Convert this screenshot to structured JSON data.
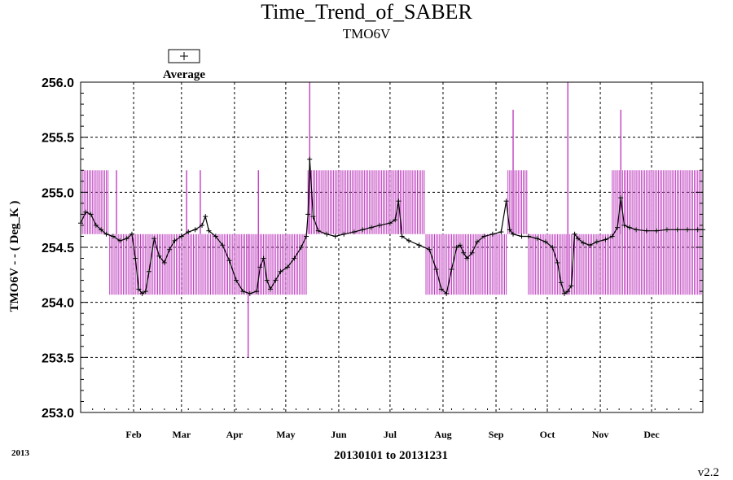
{
  "chart_data": {
    "type": "line",
    "title": "Time_Trend_of_SABER",
    "subtitle": "TMO6V",
    "xlabel": "20130101 to 20131231",
    "ylabel": "TMO6V  - - ( Deg_K )",
    "ylim": [
      253.0,
      256.0
    ],
    "yticks": [
      "253.0",
      "253.5",
      "254.0",
      "254.5",
      "255.0",
      "255.5",
      "256.0"
    ],
    "xlim": [
      "2013-01-01",
      "2013-12-31"
    ],
    "month_labels": [
      "Feb",
      "Mar",
      "Apr",
      "May",
      "Jun",
      "Jul",
      "Aug",
      "Sep",
      "Oct",
      "Nov",
      "Dec"
    ],
    "grid": true,
    "legend": {
      "position": "top-left",
      "entries": [
        "Average"
      ]
    },
    "year_label": "2013",
    "version_label": "v2.2",
    "series": [
      {
        "name": "Average",
        "color": "#000000",
        "marker": "plus",
        "x": [
          "2013-01-01",
          "2013-01-04",
          "2013-01-07",
          "2013-01-10",
          "2013-01-13",
          "2013-01-16",
          "2013-01-20",
          "2013-01-24",
          "2013-01-28",
          "2013-01-31",
          "2013-02-02",
          "2013-02-04",
          "2013-02-06",
          "2013-02-08",
          "2013-02-10",
          "2013-02-13",
          "2013-02-16",
          "2013-02-19",
          "2013-02-22",
          "2013-02-25",
          "2013-03-01",
          "2013-03-05",
          "2013-03-09",
          "2013-03-13",
          "2013-03-15",
          "2013-03-17",
          "2013-03-21",
          "2013-03-25",
          "2013-03-29",
          "2013-04-02",
          "2013-04-06",
          "2013-04-10",
          "2013-04-14",
          "2013-04-16",
          "2013-04-18",
          "2013-04-20",
          "2013-04-22",
          "2013-04-25",
          "2013-04-28",
          "2013-05-02",
          "2013-05-06",
          "2013-05-10",
          "2013-05-13",
          "2013-05-14",
          "2013-05-15",
          "2013-05-17",
          "2013-05-20",
          "2013-05-25",
          "2013-05-30",
          "2013-06-04",
          "2013-06-10",
          "2013-06-15",
          "2013-06-20",
          "2013-06-25",
          "2013-07-01",
          "2013-07-04",
          "2013-07-06",
          "2013-07-08",
          "2013-07-12",
          "2013-07-18",
          "2013-07-24",
          "2013-07-28",
          "2013-07-31",
          "2013-08-03",
          "2013-08-06",
          "2013-08-09",
          "2013-08-11",
          "2013-08-13",
          "2013-08-15",
          "2013-08-18",
          "2013-08-21",
          "2013-08-25",
          "2013-08-30",
          "2013-09-04",
          "2013-09-07",
          "2013-09-09",
          "2013-09-11",
          "2013-09-16",
          "2013-09-20",
          "2013-09-25",
          "2013-09-30",
          "2013-10-04",
          "2013-10-07",
          "2013-10-09",
          "2013-10-11",
          "2013-10-13",
          "2013-10-15",
          "2013-10-17",
          "2013-10-19",
          "2013-10-22",
          "2013-10-26",
          "2013-10-30",
          "2013-11-04",
          "2013-11-08",
          "2013-11-11",
          "2013-11-13",
          "2013-11-15",
          "2013-11-18",
          "2013-11-22",
          "2013-11-28",
          "2013-12-04",
          "2013-12-10",
          "2013-12-16",
          "2013-12-22",
          "2013-12-28",
          "2013-12-31"
        ],
        "y": [
          254.72,
          254.82,
          254.8,
          254.7,
          254.66,
          254.62,
          254.6,
          254.56,
          254.58,
          254.62,
          254.4,
          254.12,
          254.08,
          254.1,
          254.28,
          254.58,
          254.42,
          254.36,
          254.48,
          254.56,
          254.6,
          254.64,
          254.66,
          254.7,
          254.78,
          254.65,
          254.6,
          254.52,
          254.38,
          254.2,
          254.1,
          254.08,
          254.1,
          254.32,
          254.4,
          254.2,
          254.12,
          254.2,
          254.28,
          254.32,
          254.4,
          254.5,
          254.6,
          254.8,
          255.3,
          254.78,
          254.65,
          254.62,
          254.6,
          254.62,
          254.64,
          254.66,
          254.68,
          254.7,
          254.72,
          254.75,
          254.92,
          254.6,
          254.56,
          254.52,
          254.48,
          254.3,
          254.12,
          254.08,
          254.3,
          254.5,
          254.52,
          254.45,
          254.4,
          254.45,
          254.55,
          254.6,
          254.62,
          254.64,
          254.92,
          254.66,
          254.62,
          254.6,
          254.6,
          254.58,
          254.55,
          254.5,
          254.36,
          254.18,
          254.08,
          254.1,
          254.15,
          254.62,
          254.58,
          254.54,
          254.52,
          254.55,
          254.57,
          254.6,
          254.68,
          254.95,
          254.7,
          254.68,
          254.66,
          254.65,
          254.65,
          254.66,
          254.66,
          254.66,
          254.66,
          254.66
        ]
      },
      {
        "name": "",
        "color": "#c040c0",
        "style": "high-low bars",
        "bands": [
          {
            "start": "2013-01-01",
            "end": "2013-01-18",
            "low": 254.62,
            "high": 255.2
          },
          {
            "start": "2013-01-18",
            "end": "2013-03-20",
            "low": 254.07,
            "high": 254.62
          },
          {
            "start": "2013-03-20",
            "end": "2013-05-14",
            "low": 254.07,
            "high": 254.62
          },
          {
            "start": "2013-05-14",
            "end": "2013-07-22",
            "low": 254.62,
            "high": 255.2
          },
          {
            "start": "2013-07-22",
            "end": "2013-09-08",
            "low": 254.07,
            "high": 254.62
          },
          {
            "start": "2013-09-08",
            "end": "2013-09-20",
            "low": 254.62,
            "high": 255.2
          },
          {
            "start": "2013-09-20",
            "end": "2013-11-08",
            "low": 254.07,
            "high": 254.62
          },
          {
            "start": "2013-11-08",
            "end": "2013-12-31",
            "low": 254.07,
            "high": 255.2
          }
        ],
        "spikes": [
          {
            "date": "2013-01-22",
            "low": 254.62,
            "high": 255.2
          },
          {
            "date": "2013-03-04",
            "low": 254.62,
            "high": 255.2
          },
          {
            "date": "2013-03-12",
            "low": 254.62,
            "high": 255.2
          },
          {
            "date": "2013-04-09",
            "low": 253.5,
            "high": 254.62
          },
          {
            "date": "2013-04-15",
            "low": 254.07,
            "high": 255.2
          },
          {
            "date": "2013-05-15",
            "low": 254.62,
            "high": 256.0
          },
          {
            "date": "2013-07-06",
            "low": 254.62,
            "high": 255.2
          },
          {
            "date": "2013-09-11",
            "low": 254.62,
            "high": 255.75
          },
          {
            "date": "2013-10-13",
            "low": 254.07,
            "high": 256.0
          },
          {
            "date": "2013-11-13",
            "low": 254.62,
            "high": 255.75
          }
        ]
      }
    ]
  }
}
